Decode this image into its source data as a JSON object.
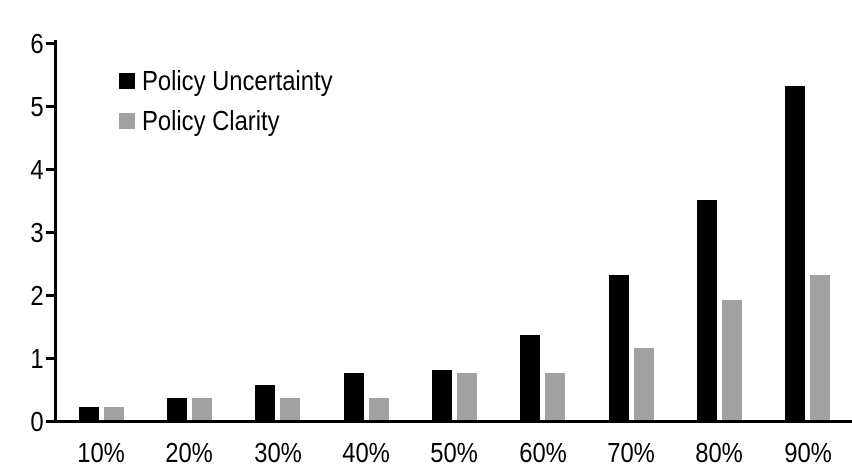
{
  "chart_data": {
    "type": "bar",
    "title": "",
    "categories": [
      "10%",
      "20%",
      "30%",
      "40%",
      "50%",
      "60%",
      "70%",
      "80%",
      "90%"
    ],
    "series": [
      {
        "name": "Policy Uncertainty",
        "color": "#000000",
        "values": [
          0.2,
          0.35,
          0.55,
          0.75,
          0.8,
          1.35,
          2.3,
          3.5,
          5.3
        ]
      },
      {
        "name": "Policy Clarity",
        "color": "#a1a1a1",
        "values": [
          0.2,
          0.35,
          0.35,
          0.35,
          0.75,
          0.75,
          1.15,
          1.9,
          2.3
        ]
      }
    ],
    "xlabel": "",
    "ylabel": "",
    "ylim": [
      0,
      6
    ],
    "y_ticks": [
      0,
      1,
      2,
      3,
      4,
      5,
      6
    ],
    "grid": false,
    "legend_position": "top-left",
    "background": "#ffffff",
    "text_color": "#000000"
  }
}
